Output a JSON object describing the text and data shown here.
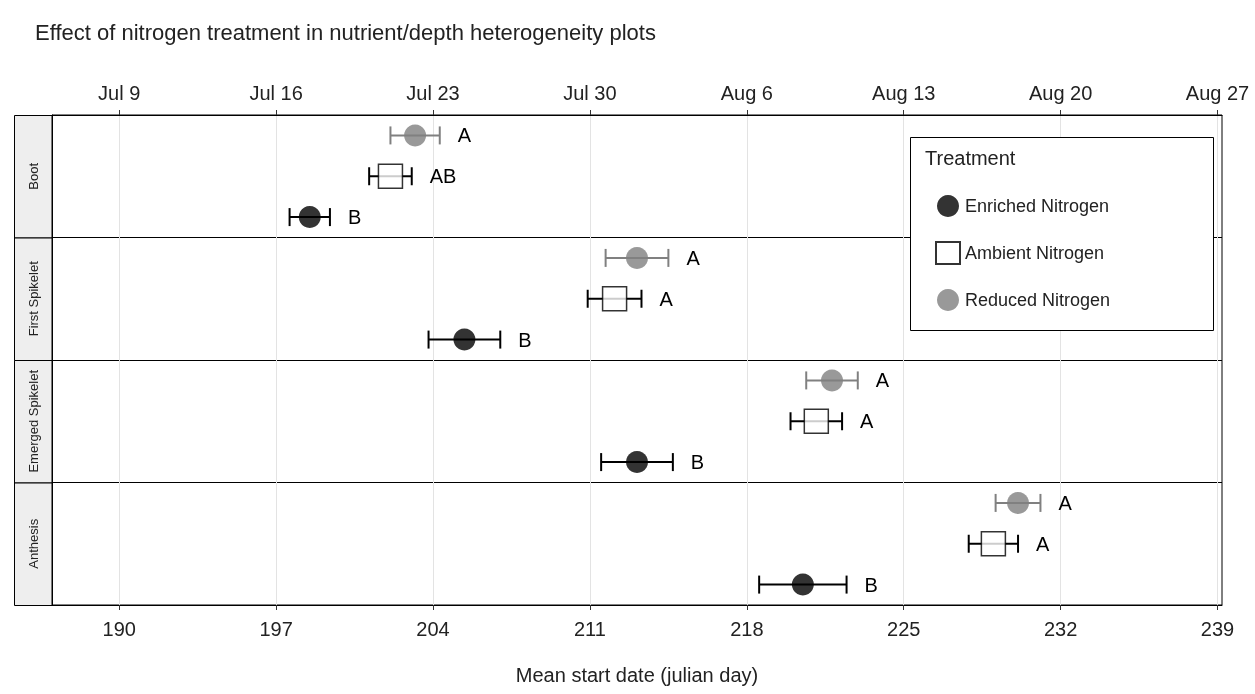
{
  "chart_data": {
    "type": "scatter",
    "orientation": "horizontal",
    "title": "Effect of nitrogen treatment in nutrient/depth heterogeneity plots",
    "xlabel": "Mean start date (julian day)",
    "legend": "top right",
    "legend_title": "Treatment",
    "grid": "x",
    "annotations": [
      "Boot",
      "First Spikelet",
      "Emerged Spikelet",
      "Anthesis"
    ],
    "categories": [
      null,
      null,
      null,
      null,
      null,
      null,
      null,
      null,
      null,
      null,
      null,
      null
    ],
    "xlim": [
      187,
      239.2
    ],
    "xticks": [
      190,
      197,
      204,
      211,
      218,
      225,
      232,
      239
    ],
    "x2lim": [
      "--07-06",
      "--08-27T04:48"
    ],
    "x2ticks": [
      {
        "value": "--07-09",
        "label": "Jul 9"
      },
      {
        "value": "--07-16",
        "label": "Jul 16"
      },
      {
        "value": "--07-23",
        "label": "Jul 23"
      },
      {
        "value": "--07-30",
        "label": "Jul 30"
      },
      {
        "value": "--08-06",
        "label": "Aug 6"
      },
      {
        "value": "--08-13",
        "label": "Aug 13"
      },
      {
        "value": "--08-20",
        "label": "Aug 20"
      },
      {
        "value": "--08-27",
        "label": "Aug 27"
      }
    ],
    "series": [
      {
        "name": "Enriched Nitrogen",
        "color": "#000000",
        "marker": "circle",
        "values": [
          null,
          null,
          198.5,
          null,
          null,
          205.4,
          null,
          null,
          213.1,
          null,
          null,
          220.5
        ],
        "errors": [
          null,
          null,
          0.9,
          null,
          null,
          1.6,
          null,
          null,
          1.6,
          null,
          null,
          1.95
        ],
        "value_labels": [
          null,
          null,
          "B",
          null,
          null,
          "B",
          null,
          null,
          "B",
          null,
          null,
          "B"
        ]
      },
      {
        "name": "Ambient Nitrogen",
        "color": "#000000",
        "marker": "square",
        "values": [
          null,
          202.1,
          null,
          null,
          212.1,
          null,
          null,
          221.1,
          null,
          null,
          229.0,
          null
        ],
        "errors": [
          null,
          0.95,
          null,
          null,
          1.2,
          null,
          null,
          1.15,
          null,
          null,
          1.1,
          null
        ],
        "value_labels": [
          null,
          "AB",
          null,
          null,
          "A",
          null,
          null,
          "A",
          null,
          null,
          "A",
          null
        ]
      },
      {
        "name": "Reduced Nitrogen",
        "color": "#808080",
        "marker": "circle",
        "values": [
          203.2,
          null,
          null,
          213.1,
          null,
          null,
          221.8,
          null,
          null,
          230.1,
          null,
          null
        ],
        "errors": [
          1.1,
          null,
          null,
          1.4,
          null,
          null,
          1.15,
          null,
          null,
          1.0,
          null,
          null
        ],
        "value_labels": [
          "A",
          null,
          null,
          "A",
          null,
          null,
          "A",
          null,
          null,
          "A",
          null,
          null
        ]
      }
    ]
  }
}
